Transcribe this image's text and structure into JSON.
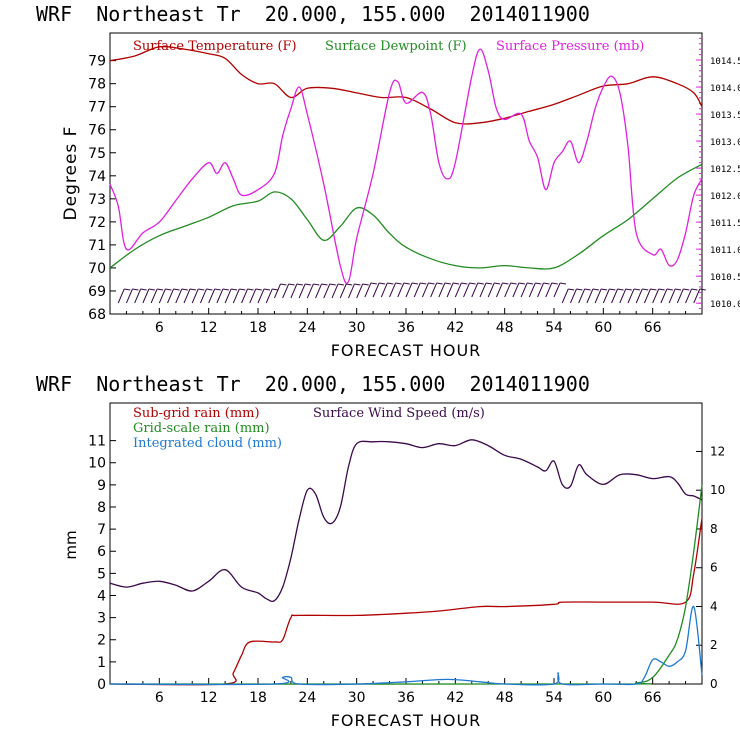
{
  "header": {
    "title": "WRF  Northeast Tr  20.000, 155.000  2014011900"
  },
  "colors": {
    "temperature": "#b00000",
    "dewpoint": "#228b22",
    "pressure": "#e020e0",
    "wind": "#3a0a4a",
    "cloud": "#1e78d0"
  },
  "chart_data": [
    {
      "type": "line",
      "title": "WRF  Northeast Tr  20.000, 155.000  2014011900",
      "xlabel": "FORECAST HOUR",
      "ylabel": "Degrees F",
      "ylabel_right": "",
      "xlim": [
        0,
        72
      ],
      "ylim": [
        68,
        80.2
      ],
      "ylim_right": [
        1009.8,
        1015.0
      ],
      "x_ticks": [
        6,
        12,
        18,
        24,
        30,
        36,
        42,
        48,
        54,
        60,
        66
      ],
      "y_ticks": [
        68,
        69,
        70,
        71,
        72,
        73,
        74,
        75,
        76,
        77,
        78,
        79
      ],
      "y_ticks_right": [
        "1010.0",
        "1010.5",
        "1011.0",
        "1011.5",
        "1012.0",
        "1012.5",
        "1013.0",
        "1013.5",
        "1014.0",
        "1014.5"
      ],
      "legend": [
        "Surface Temperature (F)",
        "Surface Dewpoint (F)",
        "Surface Pressure (mb)"
      ],
      "series": [
        {
          "name": "Surface Temperature (F)",
          "axis": "left",
          "x": [
            0,
            3,
            6,
            9,
            12,
            14,
            16,
            18,
            20,
            22,
            24,
            27,
            30,
            33,
            36,
            39,
            42,
            45,
            48,
            51,
            54,
            57,
            60,
            63,
            66,
            69,
            71,
            72
          ],
          "y": [
            79.0,
            79.2,
            79.6,
            79.5,
            79.3,
            79.1,
            78.4,
            78.0,
            78.0,
            77.4,
            77.8,
            77.8,
            77.6,
            77.4,
            77.4,
            76.9,
            76.3,
            76.3,
            76.5,
            76.8,
            77.1,
            77.5,
            77.9,
            78.0,
            78.3,
            78.0,
            77.6,
            77.0
          ]
        },
        {
          "name": "Surface Dewpoint (F)",
          "axis": "left",
          "x": [
            0,
            3,
            6,
            9,
            12,
            15,
            18,
            20,
            22,
            24,
            26,
            28,
            30,
            32,
            34,
            36,
            39,
            42,
            45,
            48,
            51,
            54,
            57,
            60,
            63,
            66,
            69,
            72
          ],
          "y": [
            70.0,
            70.8,
            71.4,
            71.8,
            72.2,
            72.7,
            72.9,
            73.3,
            73.0,
            72.1,
            71.2,
            71.8,
            72.6,
            72.3,
            71.5,
            70.9,
            70.4,
            70.1,
            70.0,
            70.1,
            70.0,
            70.0,
            70.6,
            71.4,
            72.1,
            73.0,
            73.9,
            74.5
          ]
        },
        {
          "name": "Surface Pressure (mb)",
          "axis": "right",
          "x": [
            0,
            1,
            2,
            4,
            6,
            8,
            10,
            12,
            13,
            14,
            15,
            16,
            18,
            20,
            21,
            22,
            23,
            24,
            26,
            28,
            29,
            30,
            32,
            34,
            35,
            36,
            38,
            39,
            40,
            41,
            42,
            44,
            45,
            46,
            47,
            48,
            50,
            51,
            52,
            53,
            54,
            55,
            56,
            57,
            58,
            59,
            60,
            61,
            62,
            63,
            64,
            66,
            67,
            68,
            69,
            70,
            71,
            72
          ],
          "y": [
            1012.2,
            1011.8,
            1011.0,
            1011.3,
            1011.5,
            1011.9,
            1012.3,
            1012.6,
            1012.4,
            1012.6,
            1012.3,
            1012.0,
            1012.1,
            1012.4,
            1013.1,
            1013.6,
            1014.0,
            1013.5,
            1012.2,
            1010.7,
            1010.4,
            1011.2,
            1012.4,
            1013.9,
            1014.1,
            1013.7,
            1013.9,
            1013.5,
            1012.6,
            1012.3,
            1012.6,
            1014.2,
            1014.7,
            1014.3,
            1013.6,
            1013.4,
            1013.5,
            1013.0,
            1012.7,
            1012.1,
            1012.6,
            1012.8,
            1013.0,
            1012.6,
            1013.0,
            1013.6,
            1014.0,
            1014.2,
            1013.9,
            1012.9,
            1011.3,
            1010.9,
            1011.0,
            1010.7,
            1010.8,
            1011.3,
            1012.0,
            1012.3
          ]
        }
      ],
      "wind_barbs_label": ""
    },
    {
      "type": "line",
      "title": "WRF  Northeast Tr  20.000, 155.000  2014011900",
      "xlabel": "FORECAST HOUR",
      "ylabel": "mm",
      "ylabel_right": "",
      "xlim": [
        0,
        72
      ],
      "ylim": [
        0,
        12.7
      ],
      "ylim_right": [
        0,
        14.5
      ],
      "x_ticks": [
        6,
        12,
        18,
        24,
        30,
        36,
        42,
        48,
        54,
        60,
        66
      ],
      "y_ticks": [
        0,
        1,
        2,
        3,
        4,
        5,
        6,
        7,
        8,
        9,
        10,
        11
      ],
      "y_ticks_right": [
        0,
        2,
        4,
        6,
        8,
        10,
        12
      ],
      "legend": [
        "Sub-grid rain (mm)",
        "Surface Wind Speed (m/s)",
        "Grid-scale rain (mm)",
        "Integrated cloud (mm)"
      ],
      "series": [
        {
          "name": "Sub-grid rain (mm)",
          "axis": "left",
          "x": [
            0,
            14,
            15,
            16,
            17,
            20,
            21,
            22,
            23,
            30,
            36,
            40,
            45,
            48,
            54,
            55,
            60,
            66,
            70,
            71,
            72
          ],
          "y": [
            0,
            0,
            0.5,
            1.3,
            1.9,
            1.9,
            2.0,
            3.0,
            3.1,
            3.1,
            3.2,
            3.3,
            3.5,
            3.5,
            3.6,
            3.7,
            3.7,
            3.7,
            3.7,
            5.0,
            7.5
          ]
        },
        {
          "name": "Surface Wind Speed (m/s)",
          "axis": "right",
          "x": [
            0,
            2,
            4,
            6,
            8,
            10,
            12,
            14,
            16,
            18,
            19,
            20,
            21,
            22,
            23,
            24,
            25,
            26,
            27,
            28,
            29,
            30,
            32,
            34,
            36,
            38,
            40,
            42,
            44,
            46,
            48,
            50,
            52,
            53,
            54,
            55,
            56,
            57,
            58,
            60,
            62,
            64,
            66,
            68,
            69,
            70,
            71,
            72
          ],
          "y": [
            5.2,
            5.0,
            5.2,
            5.3,
            5.1,
            4.8,
            5.3,
            5.9,
            5.0,
            4.7,
            4.4,
            4.3,
            5.0,
            6.5,
            8.5,
            10.0,
            9.8,
            8.6,
            8.3,
            9.1,
            11.2,
            12.4,
            12.5,
            12.5,
            12.4,
            12.2,
            12.4,
            12.3,
            12.6,
            12.3,
            11.8,
            11.6,
            11.2,
            11.0,
            11.5,
            10.3,
            10.2,
            11.3,
            10.8,
            10.3,
            10.8,
            10.8,
            10.6,
            10.7,
            10.4,
            9.8,
            9.7,
            9.5
          ]
        },
        {
          "name": "Grid-scale rain (mm)",
          "axis": "left",
          "x": [
            0,
            60,
            64,
            66,
            68,
            69,
            70,
            71,
            72
          ],
          "y": [
            0,
            0,
            0.05,
            0.3,
            1.3,
            2.0,
            3.5,
            6.0,
            9.0
          ]
        },
        {
          "name": "Integrated cloud (mm)",
          "axis": "left",
          "x": [
            0,
            20,
            21,
            22,
            23,
            30,
            36,
            40,
            42,
            45,
            48,
            54,
            54.5,
            55,
            60,
            64,
            65,
            66,
            67,
            68,
            69,
            70,
            71,
            72
          ],
          "y": [
            0,
            0,
            0.3,
            0.3,
            0,
            0,
            0.1,
            0.2,
            0.2,
            0.1,
            0,
            0,
            0.5,
            0,
            0,
            0,
            0.3,
            1.1,
            1.0,
            0.8,
            1.0,
            1.5,
            3.5,
            0.4
          ]
        }
      ]
    }
  ]
}
